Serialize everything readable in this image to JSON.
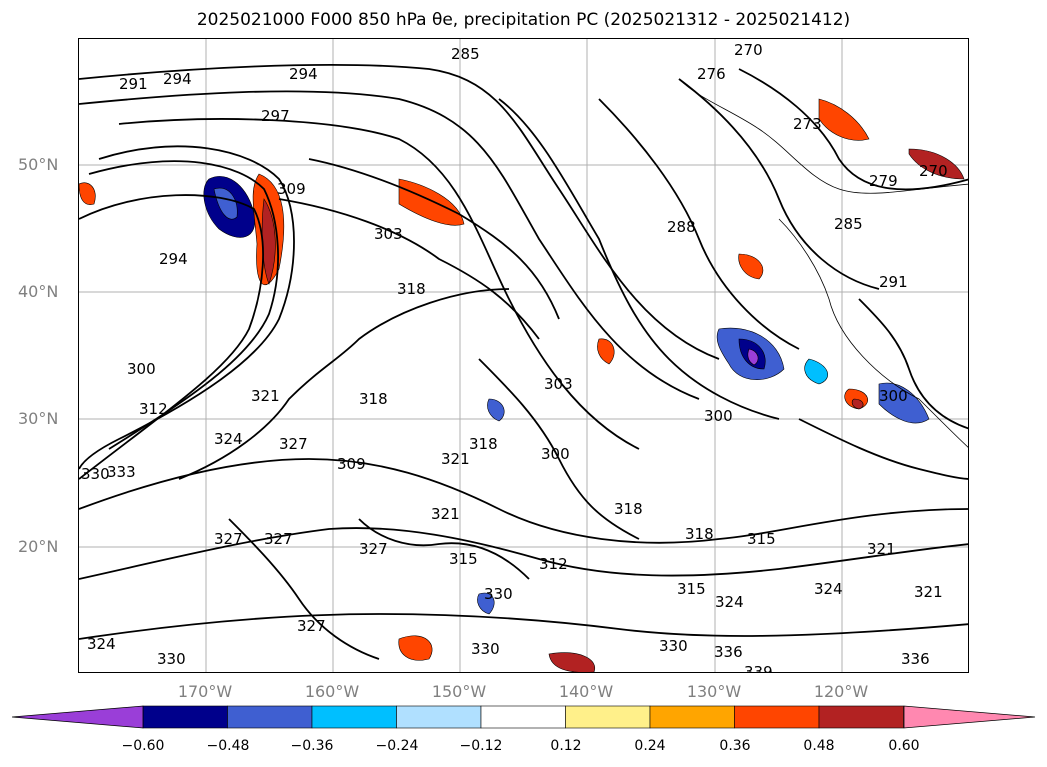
{
  "title": "2025021000 F000 850 hPa θe, precipitation PC (2025021312 - 2025021412)",
  "latitudes": [
    "50°N",
    "40°N",
    "30°N",
    "20°N"
  ],
  "longitudes": [
    "170°W",
    "160°W",
    "150°W",
    "140°W",
    "130°W",
    "120°W"
  ],
  "colorbar": {
    "ticks": [
      "−0.60",
      "−0.48",
      "−0.36",
      "−0.24",
      "−0.12",
      "0.12",
      "0.24",
      "0.36",
      "0.48",
      "0.60"
    ],
    "colors": [
      "#9a3ed8",
      "#00008b",
      "#3f5fd1",
      "#00bfff",
      "#b0e0ff",
      "#ffffff",
      "#fff08a",
      "#ffa500",
      "#ff4500",
      "#b22222",
      "#ff88b0"
    ]
  },
  "contour_labels": [
    "285",
    "270",
    "276",
    "291",
    "294",
    "294",
    "297",
    "273",
    "270",
    "279",
    "309",
    "303",
    "288",
    "285",
    "294",
    "318",
    "291",
    "300",
    "303",
    "300",
    "300",
    "312",
    "321",
    "318",
    "324",
    "327",
    "309",
    "321",
    "318",
    "300",
    "330",
    "333",
    "327",
    "327",
    "321",
    "327",
    "315",
    "312",
    "315",
    "318",
    "318",
    "321",
    "324",
    "315",
    "324",
    "321",
    "327",
    "330",
    "324",
    "330",
    "330",
    "336",
    "339",
    "336",
    "330"
  ]
}
